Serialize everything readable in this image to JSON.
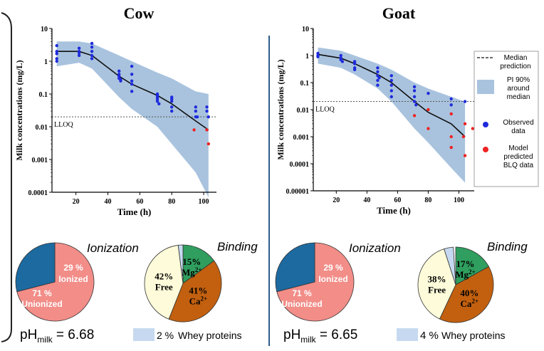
{
  "colors": {
    "pi_band": "#a9c3de",
    "observed": "#1f2bdc",
    "bql": "#ee2222",
    "unionized": "#1c6aa0",
    "ionized": "#f28d88",
    "free": "#fdfbd9",
    "mg": "#2f9e5e",
    "ca": "#c2600f",
    "whey": "#c6d9f0",
    "divider": "#2e5d8a"
  },
  "legend": {
    "median": "Median prediction",
    "pi": "PI 90% around median",
    "observed": "Observed data",
    "bql": "Model predicted BLQ data"
  },
  "chart_data": [
    {
      "type": "scatter",
      "title": "Cow",
      "xlabel": "Time (h)",
      "ylabel": "Milk concentrations (mg/L)",
      "xlim": [
        5,
        108
      ],
      "ylim": [
        0.0001,
        10
      ],
      "yscale": "log",
      "xticks": [
        "20",
        "40",
        "60",
        "80",
        "100"
      ],
      "yticks": [
        "0.0001",
        "0.001",
        "0.01",
        "0.1",
        "1",
        "10"
      ],
      "lloq": {
        "label": "LLOQ",
        "value": 0.02
      },
      "series": [
        {
          "kind": "median",
          "x": [
            8,
            22,
            30,
            47,
            55,
            71,
            80,
            95,
            103
          ],
          "y": [
            2.0,
            2.0,
            1.5,
            0.35,
            0.2,
            0.09,
            0.05,
            0.015,
            0.008
          ]
        },
        {
          "kind": "pi_upper",
          "x": [
            8,
            22,
            30,
            47,
            55,
            71,
            80,
            95,
            103
          ],
          "y": [
            4.0,
            4.0,
            3.5,
            1.5,
            1.0,
            0.45,
            0.3,
            0.12,
            0.1
          ]
        },
        {
          "kind": "pi_lower",
          "x": [
            8,
            22,
            30,
            47,
            55,
            71,
            80,
            95,
            103
          ],
          "y": [
            0.7,
            0.9,
            0.6,
            0.08,
            0.035,
            0.01,
            0.003,
            0.0004,
            7e-05
          ]
        },
        {
          "kind": "observed",
          "x": [
            8,
            8,
            8,
            8,
            8,
            22,
            22,
            22,
            22,
            30,
            30,
            30,
            30,
            30,
            47,
            47,
            47,
            47,
            48,
            48,
            55,
            55,
            55,
            55,
            55,
            71,
            71,
            71,
            71,
            71,
            72,
            80,
            80,
            80,
            80,
            80,
            95,
            95,
            95,
            96,
            102,
            102,
            103
          ],
          "y": [
            3.0,
            2.0,
            1.7,
            1.2,
            1.0,
            2.5,
            2.0,
            1.8,
            1.5,
            3.5,
            2.7,
            2.0,
            1.5,
            1.2,
            0.5,
            0.4,
            0.35,
            0.3,
            0.28,
            0.25,
            0.7,
            0.4,
            0.25,
            0.2,
            0.12,
            0.1,
            0.09,
            0.08,
            0.07,
            0.06,
            0.05,
            0.08,
            0.07,
            0.06,
            0.04,
            0.03,
            0.04,
            0.03,
            0.02,
            0.02,
            0.04,
            0.03,
            0.02
          ]
        },
        {
          "kind": "bql",
          "x": [
            94,
            102,
            103
          ],
          "y": [
            0.008,
            0.008,
            0.003
          ]
        }
      ]
    },
    {
      "type": "scatter",
      "title": "Goat",
      "xlabel": "Time (h)",
      "ylabel": "Milk concentrations (mg/L)",
      "xlim": [
        5,
        110
      ],
      "ylim": [
        1e-05,
        10
      ],
      "yscale": "log",
      "xticks": [
        "20",
        "40",
        "60",
        "80",
        "100"
      ],
      "yticks": [
        "0.00001",
        "0.0001",
        "0.001",
        "0.01",
        "0.1",
        "1",
        "10"
      ],
      "lloq": {
        "label": "LLOQ",
        "value": 0.02
      },
      "series": [
        {
          "kind": "median",
          "x": [
            8,
            23,
            32,
            47,
            56,
            71,
            80,
            95,
            104
          ],
          "y": [
            1.1,
            0.8,
            0.5,
            0.2,
            0.1,
            0.02,
            0.008,
            0.003,
            0.001
          ]
        },
        {
          "kind": "pi_upper",
          "x": [
            8,
            23,
            32,
            47,
            56,
            71,
            80,
            95,
            104
          ],
          "y": [
            2.0,
            1.5,
            1.0,
            0.5,
            0.3,
            0.1,
            0.06,
            0.03,
            0.02
          ]
        },
        {
          "kind": "pi_lower",
          "x": [
            8,
            23,
            32,
            47,
            56,
            71,
            80,
            95,
            104
          ],
          "y": [
            0.5,
            0.35,
            0.2,
            0.06,
            0.02,
            0.002,
            0.0006,
            7e-05,
            2e-05
          ]
        },
        {
          "kind": "observed",
          "x": [
            8,
            8,
            8,
            23,
            23,
            23,
            24,
            32,
            32,
            32,
            32,
            47,
            47,
            47,
            47,
            47,
            48,
            56,
            56,
            56,
            56,
            56,
            71,
            71,
            71,
            71,
            72,
            80,
            95,
            95,
            104
          ],
          "y": [
            1.2,
            1.0,
            0.9,
            1.0,
            0.8,
            0.7,
            0.6,
            0.6,
            0.5,
            0.35,
            0.3,
            0.35,
            0.25,
            0.18,
            0.12,
            0.08,
            0.15,
            0.18,
            0.12,
            0.08,
            0.05,
            0.03,
            0.07,
            0.05,
            0.03,
            0.02,
            0.015,
            0.04,
            0.025,
            0.015,
            0.02
          ]
        },
        {
          "kind": "bql",
          "x": [
            71,
            80,
            80,
            95,
            95,
            95,
            103,
            104,
            104,
            109
          ],
          "y": [
            0.006,
            0.01,
            0.002,
            0.007,
            0.001,
            0.0004,
            0.001,
            0.003,
            0.0002,
            0.002
          ]
        }
      ]
    },
    {
      "type": "pie",
      "title": "Ionization",
      "slices": [
        {
          "label": "Unionized",
          "value": 71,
          "text": "71 %"
        },
        {
          "label": "Ionized",
          "value": 29,
          "text": "29 %"
        }
      ]
    },
    {
      "type": "pie",
      "title": "Binding",
      "slices": [
        {
          "label": "Mg2+",
          "value": 15,
          "text": "15%"
        },
        {
          "label": "Ca2+",
          "value": 41,
          "text": "41%"
        },
        {
          "label": "Free",
          "value": 42,
          "text": "42%"
        },
        {
          "label": "Whey proteins",
          "value": 2,
          "text": "2 %"
        }
      ]
    },
    {
      "type": "pie",
      "title": "Ionization",
      "slices": [
        {
          "label": "Unionized",
          "value": 71,
          "text": "71 %"
        },
        {
          "label": "Ionized",
          "value": 29,
          "text": "29 %"
        }
      ]
    },
    {
      "type": "pie",
      "title": "Binding",
      "slices": [
        {
          "label": "Mg2+",
          "value": 17,
          "text": "17%"
        },
        {
          "label": "Ca2+",
          "value": 40,
          "text": "40%"
        },
        {
          "label": "Free",
          "value": 38,
          "text": "38%"
        },
        {
          "label": "Whey proteins",
          "value": 4,
          "text": "4 %"
        }
      ]
    }
  ],
  "cow_ph": {
    "prefix": "pH",
    "sub": "milk",
    "value": "= 6.68"
  },
  "goat_ph": {
    "prefix": "pH",
    "sub": "milk",
    "value": "= 6.65"
  },
  "cow_whey": {
    "pct": "2 %",
    "label": "Whey proteins"
  },
  "goat_whey": {
    "pct": "4 %",
    "label": "Whey proteins"
  }
}
